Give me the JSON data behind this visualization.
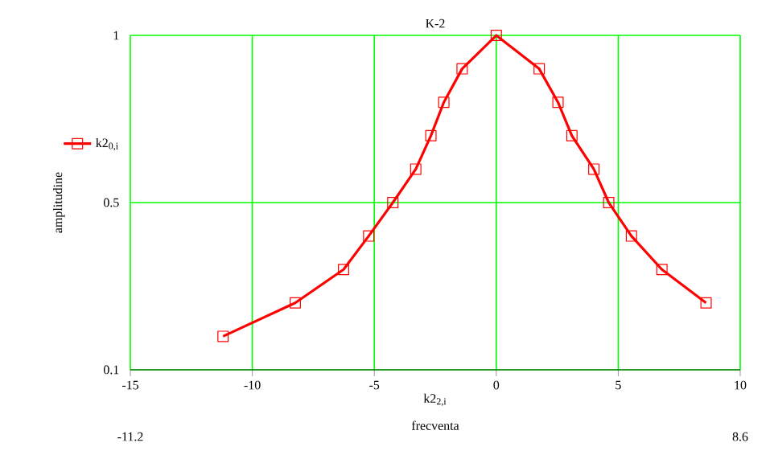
{
  "chart_data": {
    "type": "line",
    "title": "K-2",
    "xlabel": "frecventa",
    "ylabel": "amplitudine",
    "x": [
      -11.2,
      -8.24,
      -6.26,
      -5.23,
      -4.24,
      -3.3,
      -2.68,
      -2.15,
      -1.4,
      0,
      1.76,
      2.53,
      3.1,
      4.0,
      4.61,
      5.54,
      6.79,
      8.6
    ],
    "series": [
      {
        "name": "k2$_{0,i}$",
        "color": "#ff0000",
        "values": [
          0.19,
          0.28,
          0.37,
          0.46,
          0.55,
          0.64,
          0.73,
          0.82,
          0.91,
          1,
          0.91,
          0.82,
          0.73,
          0.64,
          0.55,
          0.46,
          0.37,
          0.28
        ]
      }
    ],
    "xlim": [
      -15,
      10
    ],
    "xticks": [
      -15,
      -10,
      -5,
      0,
      5,
      10
    ],
    "ylim": [
      0.1,
      1
    ],
    "yticks": [
      0.1,
      {
        "value": 0.55,
        "label": "0.5"
      },
      1
    ],
    "grid": true,
    "legend": "left",
    "marker": "square",
    "line_style": "solid",
    "annotations": [
      "k2$_{2,i}$",
      "-11.2",
      "8.6"
    ]
  }
}
